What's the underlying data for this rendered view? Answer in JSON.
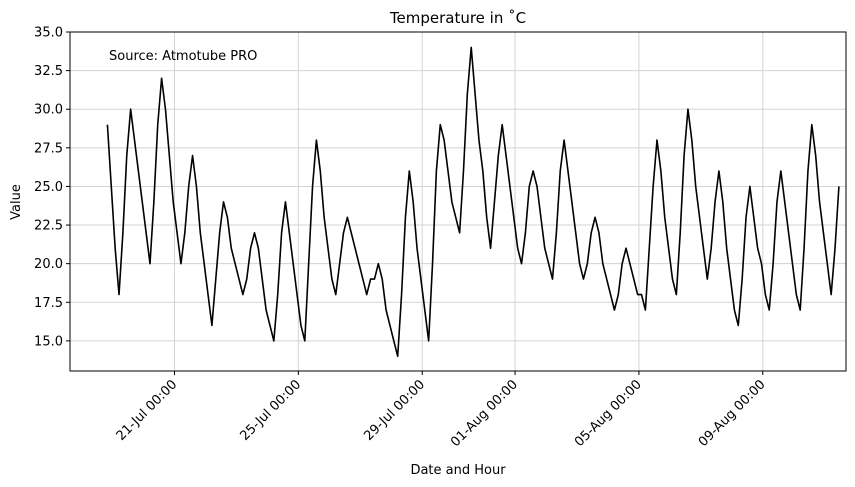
{
  "chart_data": {
    "type": "line",
    "title": "Temperature in ˚C",
    "x_label": "Date and Hour",
    "y_label": "Value",
    "annotation": "Source: Atmotube PRO",
    "color": "#000000",
    "grid": true,
    "x": [
      "18-Jul 20:00",
      "18-Jul 23:00",
      "19-Jul 02:00",
      "19-Jul 05:00",
      "19-Jul 08:00",
      "19-Jul 11:00",
      "19-Jul 14:00",
      "19-Jul 17:00",
      "19-Jul 20:00",
      "19-Jul 23:00",
      "20-Jul 02:00",
      "20-Jul 05:00",
      "20-Jul 08:00",
      "20-Jul 11:00",
      "20-Jul 14:00",
      "20-Jul 17:00",
      "20-Jul 20:00",
      "20-Jul 23:00",
      "21-Jul 02:00",
      "21-Jul 05:00",
      "21-Jul 08:00",
      "21-Jul 11:00",
      "21-Jul 14:00",
      "21-Jul 17:00",
      "21-Jul 20:00",
      "21-Jul 23:00",
      "22-Jul 02:00",
      "22-Jul 05:00",
      "22-Jul 08:00",
      "22-Jul 11:00",
      "22-Jul 14:00",
      "22-Jul 17:00",
      "22-Jul 20:00",
      "22-Jul 23:00",
      "23-Jul 02:00",
      "23-Jul 05:00",
      "23-Jul 08:00",
      "23-Jul 11:00",
      "23-Jul 14:00",
      "23-Jul 17:00",
      "23-Jul 20:00",
      "23-Jul 23:00",
      "24-Jul 02:00",
      "24-Jul 05:00",
      "24-Jul 08:00",
      "24-Jul 11:00",
      "24-Jul 14:00",
      "24-Jul 17:00",
      "24-Jul 20:00",
      "24-Jul 23:00",
      "25-Jul 02:00",
      "25-Jul 05:00",
      "25-Jul 08:00",
      "25-Jul 11:00",
      "25-Jul 14:00",
      "25-Jul 17:00",
      "25-Jul 20:00",
      "25-Jul 23:00",
      "26-Jul 02:00",
      "26-Jul 05:00",
      "26-Jul 08:00",
      "26-Jul 11:00",
      "26-Jul 14:00",
      "26-Jul 17:00",
      "26-Jul 20:00",
      "26-Jul 23:00",
      "27-Jul 02:00",
      "27-Jul 05:00",
      "27-Jul 08:00",
      "27-Jul 11:00",
      "27-Jul 14:00",
      "27-Jul 17:00",
      "27-Jul 20:00",
      "27-Jul 23:00",
      "28-Jul 02:00",
      "28-Jul 05:00",
      "28-Jul 08:00",
      "28-Jul 11:00",
      "28-Jul 14:00",
      "28-Jul 17:00",
      "28-Jul 20:00",
      "28-Jul 23:00",
      "29-Jul 02:00",
      "29-Jul 05:00",
      "29-Jul 08:00",
      "29-Jul 11:00",
      "29-Jul 14:00",
      "29-Jul 17:00",
      "29-Jul 20:00",
      "29-Jul 23:00",
      "30-Jul 02:00",
      "30-Jul 05:00",
      "30-Jul 08:00",
      "30-Jul 11:00",
      "30-Jul 14:00",
      "30-Jul 17:00",
      "30-Jul 20:00",
      "30-Jul 23:00",
      "31-Jul 02:00",
      "31-Jul 05:00",
      "31-Jul 08:00",
      "31-Jul 11:00",
      "31-Jul 14:00",
      "31-Jul 17:00",
      "31-Jul 20:00",
      "31-Jul 23:00",
      "01-Aug 02:00",
      "01-Aug 05:00",
      "01-Aug 08:00",
      "01-Aug 11:00",
      "01-Aug 14:00",
      "01-Aug 17:00",
      "01-Aug 20:00",
      "01-Aug 23:00",
      "02-Aug 02:00",
      "02-Aug 05:00",
      "02-Aug 08:00",
      "02-Aug 11:00",
      "02-Aug 14:00",
      "02-Aug 17:00",
      "02-Aug 20:00",
      "02-Aug 23:00",
      "03-Aug 02:00",
      "03-Aug 05:00",
      "03-Aug 08:00",
      "03-Aug 11:00",
      "03-Aug 14:00",
      "03-Aug 17:00",
      "03-Aug 20:00",
      "03-Aug 23:00",
      "04-Aug 02:00",
      "04-Aug 05:00",
      "04-Aug 08:00",
      "04-Aug 11:00",
      "04-Aug 14:00",
      "04-Aug 17:00",
      "04-Aug 20:00",
      "04-Aug 23:00",
      "05-Aug 02:00",
      "05-Aug 05:00",
      "05-Aug 08:00",
      "05-Aug 11:00",
      "05-Aug 14:00",
      "05-Aug 17:00",
      "05-Aug 20:00",
      "05-Aug 23:00",
      "06-Aug 02:00",
      "06-Aug 05:00",
      "06-Aug 08:00",
      "06-Aug 11:00",
      "06-Aug 14:00",
      "06-Aug 17:00",
      "06-Aug 20:00",
      "06-Aug 23:00",
      "07-Aug 02:00",
      "07-Aug 05:00",
      "07-Aug 08:00",
      "07-Aug 11:00",
      "07-Aug 14:00",
      "07-Aug 17:00",
      "07-Aug 20:00",
      "07-Aug 23:00",
      "08-Aug 02:00",
      "08-Aug 05:00",
      "08-Aug 08:00",
      "08-Aug 11:00",
      "08-Aug 14:00",
      "08-Aug 17:00",
      "08-Aug 20:00",
      "08-Aug 23:00",
      "09-Aug 02:00",
      "09-Aug 05:00",
      "09-Aug 08:00",
      "09-Aug 11:00",
      "09-Aug 14:00",
      "09-Aug 17:00",
      "09-Aug 20:00",
      "09-Aug 23:00",
      "10-Aug 02:00",
      "10-Aug 05:00",
      "10-Aug 08:00",
      "10-Aug 11:00",
      "10-Aug 14:00",
      "10-Aug 17:00",
      "10-Aug 20:00",
      "10-Aug 23:00",
      "11-Aug 02:00",
      "11-Aug 05:00",
      "11-Aug 08:00",
      "11-Aug 11:00"
    ],
    "values": [
      29,
      25,
      21,
      18,
      22,
      27,
      30,
      28,
      26,
      24,
      22,
      20,
      24,
      29,
      32,
      30,
      27,
      24,
      22,
      20,
      22,
      25,
      27,
      25,
      22,
      20,
      18,
      16,
      19,
      22,
      24,
      23,
      21,
      20,
      19,
      18,
      19,
      21,
      22,
      21,
      19,
      17,
      16,
      15,
      18,
      22,
      24,
      22,
      20,
      18,
      16,
      15,
      20,
      25,
      28,
      26,
      23,
      21,
      19,
      18,
      20,
      22,
      23,
      22,
      21,
      20,
      19,
      18,
      19,
      19,
      20,
      19,
      17,
      16,
      15,
      14,
      18,
      23,
      26,
      24,
      21,
      19,
      17,
      15,
      20,
      26,
      29,
      28,
      26,
      24,
      23,
      22,
      26,
      31,
      34,
      31,
      28,
      26,
      23,
      21,
      24,
      27,
      29,
      27,
      25,
      23,
      21,
      20,
      22,
      25,
      26,
      25,
      23,
      21,
      20,
      19,
      22,
      26,
      28,
      26,
      24,
      22,
      20,
      19,
      20,
      22,
      23,
      22,
      20,
      19,
      18,
      17,
      18,
      20,
      21,
      20,
      19,
      18,
      18,
      17,
      21,
      25,
      28,
      26,
      23,
      21,
      19,
      18,
      22,
      27,
      30,
      28,
      25,
      23,
      21,
      19,
      21,
      24,
      26,
      24,
      21,
      19,
      17,
      16,
      19,
      23,
      25,
      23,
      21,
      20,
      18,
      17,
      20,
      24,
      26,
      24,
      22,
      20,
      18,
      17,
      21,
      26,
      29,
      27,
      24,
      22,
      20,
      18,
      21,
      25
    ],
    "xlim": [
      "17-Jul 15:00",
      "11-Aug 16:30"
    ],
    "xticks": [
      "21-Jul 00:00",
      "25-Jul 00:00",
      "29-Jul 00:00",
      "01-Aug 00:00",
      "05-Aug 00:00",
      "09-Aug 00:00"
    ],
    "ylim": [
      13.05,
      35
    ],
    "yticks": [
      {
        "value": 15,
        "label": "15.0"
      },
      {
        "value": 17.5,
        "label": "17.5"
      },
      {
        "value": 20,
        "label": "20.0"
      },
      {
        "value": 22.5,
        "label": "22.5"
      },
      {
        "value": 25,
        "label": "25.0"
      },
      {
        "value": 27.5,
        "label": "27.5"
      },
      {
        "value": 30,
        "label": "30.0"
      },
      {
        "value": 32.5,
        "label": "32.5"
      },
      {
        "value": 35,
        "label": "35.0"
      }
    ]
  }
}
